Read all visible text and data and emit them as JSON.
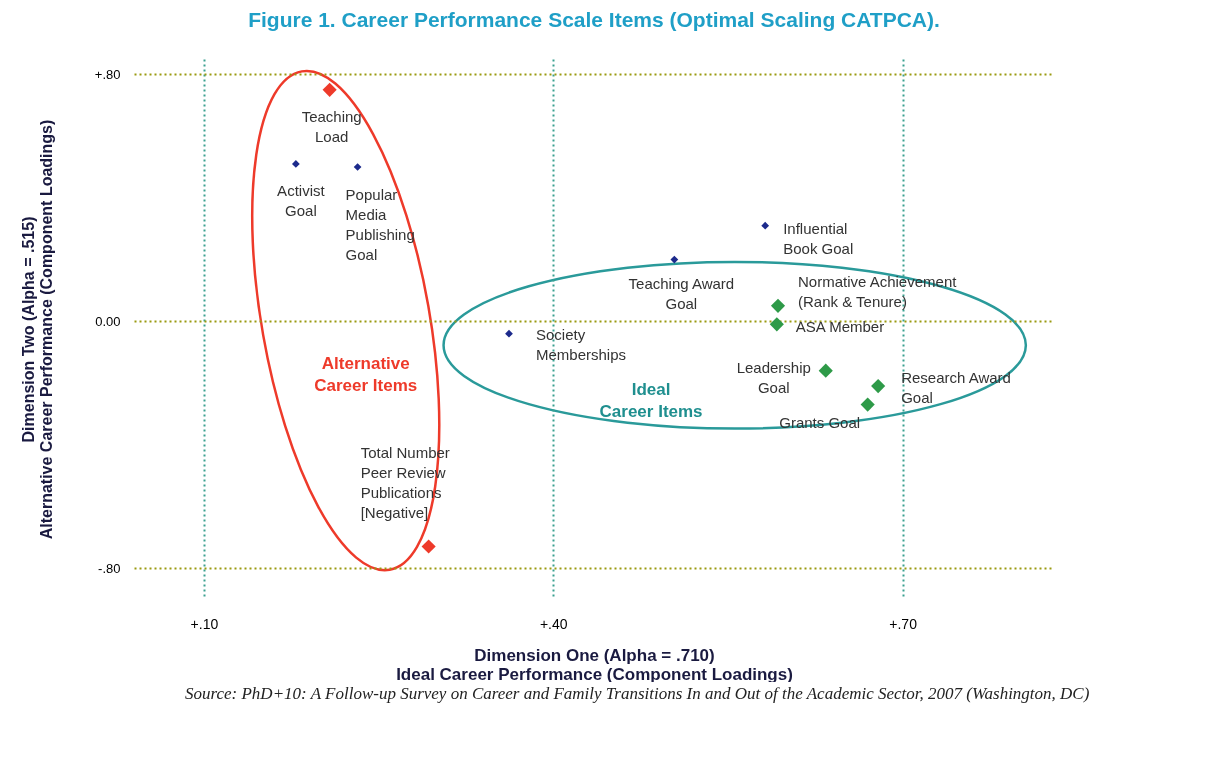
{
  "chart_data": {
    "type": "scatter",
    "title": "Figure 1. Career Performance Scale Items (Optimal Scaling CATPCA).",
    "xlabel": "Dimension One (Alpha = .710)\nIdeal Career Performance (Component Loadings)",
    "ylabel": "Dimension Two (Alpha = .515)\nAlternative Career Performance (Component Loadings)",
    "xlim": [
      0.04,
      0.83
    ],
    "ylim": [
      -0.9,
      0.85
    ],
    "xticks": [
      {
        "value": 0.1,
        "label": "+.10"
      },
      {
        "value": 0.4,
        "label": "+.40"
      },
      {
        "value": 0.7,
        "label": "+.70"
      }
    ],
    "yticks": [
      {
        "value": -0.8,
        "label": "-.80"
      },
      {
        "value": 0,
        "label": "0.00"
      },
      {
        "value": 0.8,
        "label": "+.80"
      }
    ],
    "grid": true,
    "line_style": "dotted",
    "marker": "diamond",
    "series": [
      {
        "color": "#1c2a8c",
        "x": [
          0.179,
          0.232,
          0.582,
          0.504,
          0.362
        ],
        "values": [
          0.51,
          0.5,
          0.31,
          0.2,
          -0.04
        ]
      },
      {
        "color": "#ee3a2a",
        "x": [
          0.208,
          0.293
        ],
        "values": [
          0.75,
          -0.73
        ]
      },
      {
        "color": "#2e9a48",
        "x": [
          0.593,
          0.592,
          0.634,
          0.679,
          0.67
        ],
        "values": [
          0.05,
          -0.01,
          -0.16,
          -0.21,
          -0.27
        ]
      }
    ],
    "annotations": [
      {
        "text": "Teaching\nLoad",
        "x": 0.208,
        "y": 0.75
      },
      {
        "text": "Activist\nGoal",
        "x": 0.179,
        "y": 0.51
      },
      {
        "text": "Popular\nMedia\nPublishing\nGoal",
        "x": 0.232,
        "y": 0.5
      },
      {
        "text": "Influential\nBook Goal",
        "x": 0.582,
        "y": 0.31
      },
      {
        "text": "Teaching Award\nGoal",
        "x": 0.504,
        "y": 0.2
      },
      {
        "text": "Normative Achievement\n(Rank & Tenure)",
        "x": 0.593,
        "y": 0.05
      },
      {
        "text": "ASA Member",
        "x": 0.592,
        "y": -0.01
      },
      {
        "text": "Society\nMemberships",
        "x": 0.362,
        "y": -0.04
      },
      {
        "text": "Leadership\nGoal",
        "x": 0.634,
        "y": -0.16
      },
      {
        "text": "Research Award\nGoal",
        "x": 0.679,
        "y": -0.21
      },
      {
        "text": "Grants Goal",
        "x": 0.67,
        "y": -0.27
      },
      {
        "text": "Total Number\nPeer Review\nPublications\n[Negative]",
        "x": 0.293,
        "y": -0.73
      },
      "Alternative\nCareer Items",
      "Ideal\nCareer Items",
      "Source: PhD+10: A Follow-up Survey on Career and Family Transitions In and Out of the Academic Sector, 2007 (Washington, DC)"
    ]
  }
}
